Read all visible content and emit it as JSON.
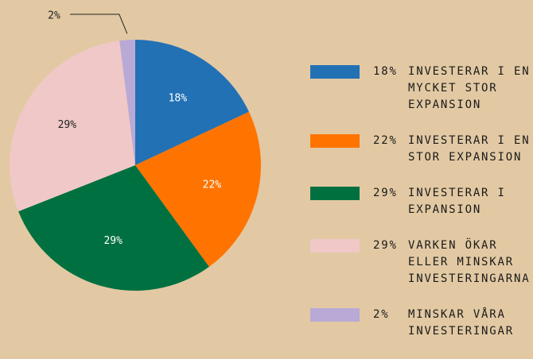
{
  "chart_data": {
    "type": "pie",
    "categories": [
      "INVESTERAR I EN MYCKET STOR EXPANSION",
      "INVESTERAR I EN STOR EXPANSION",
      "INVESTERAR I EXPANSION",
      "VARKEN ÖKAR ELLER MINSKAR INVESTERINGARNA",
      "MINSKAR VÅRA INVESTERINGAR"
    ],
    "values": [
      18,
      22,
      29,
      29,
      2
    ],
    "value_labels": [
      "18%",
      "22%",
      "29%",
      "29%",
      "2%"
    ],
    "colors": [
      "#2271b5",
      "#ff7400",
      "#007040",
      "#f0c8c8",
      "#b9a9d6"
    ],
    "label_colors": [
      "#ffffff",
      "#ffffff",
      "#ffffff",
      "#222222",
      "#222222"
    ],
    "legend": "right"
  }
}
